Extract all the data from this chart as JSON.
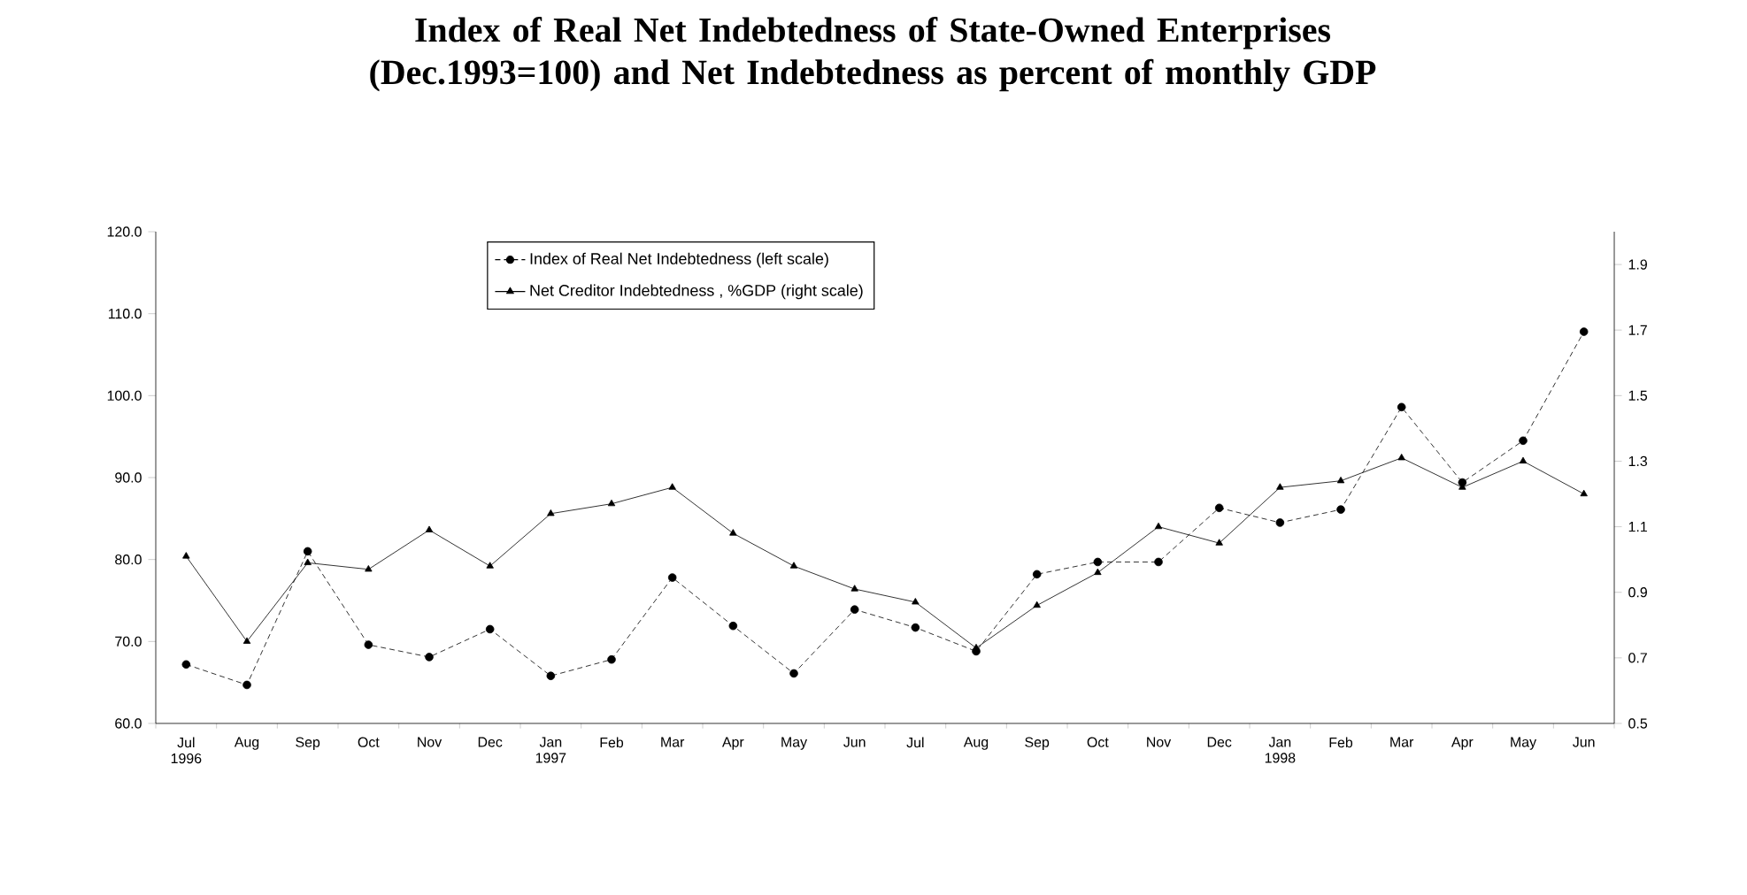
{
  "chart_data": {
    "type": "line",
    "title": "Index of Real Net Indebtedness of State-Owned Enterprises (Dec.1993=100) and Net Indebtedness as percent of monthly GDP",
    "categories": [
      "Jul 1996",
      "Aug",
      "Sep",
      "Oct",
      "Nov",
      "Dec",
      "Jan 1997",
      "Feb",
      "Mar",
      "Apr",
      "May",
      "Jun",
      "Jul",
      "Aug",
      "Sep",
      "Oct",
      "Nov",
      "Dec",
      "Jan 1998",
      "Feb",
      "Mar",
      "Apr",
      "May",
      "Jun"
    ],
    "series": [
      {
        "name": "Index of Real  Net Indebtedness (left scale)",
        "color": "#000000",
        "marker": "circle",
        "line_style": "dashed",
        "values": [
          67.2,
          64.7,
          81.0,
          69.6,
          68.1,
          71.5,
          65.8,
          67.8,
          77.8,
          71.9,
          66.1,
          73.9,
          71.7,
          68.8,
          78.2,
          79.7,
          79.7,
          86.3,
          84.5,
          86.1,
          98.6,
          89.4,
          94.5,
          107.8
        ]
      },
      {
        "name": "Net Creditor Indebtedness , %GDP (right scale)",
        "color": "#000000",
        "marker": "triangle",
        "line_style": "solid",
        "axis": "y2",
        "values": [
          1.01,
          0.75,
          0.99,
          0.97,
          1.09,
          0.98,
          1.14,
          1.17,
          1.22,
          1.08,
          0.98,
          0.91,
          0.87,
          0.73,
          0.86,
          0.96,
          1.1,
          1.05,
          1.22,
          1.24,
          1.31,
          1.22,
          1.3,
          1.2
        ]
      }
    ],
    "ylim": [
      60,
      120
    ],
    "yticks": [
      {
        "value": 60,
        "label": "60.0"
      },
      {
        "value": 70,
        "label": "70.0"
      },
      {
        "value": 80,
        "label": "80.0"
      },
      {
        "value": 90,
        "label": "90.0"
      },
      {
        "value": 100,
        "label": "100.0"
      },
      {
        "value": 110,
        "label": "110.0"
      },
      {
        "value": 120,
        "label": "120.0"
      }
    ],
    "y2lim": [
      0.5,
      2.0
    ],
    "y2ticks": [
      0.5,
      0.7,
      0.9,
      1.1,
      1.3,
      1.5,
      1.7,
      1.9
    ],
    "legend": "top",
    "grid": false
  }
}
